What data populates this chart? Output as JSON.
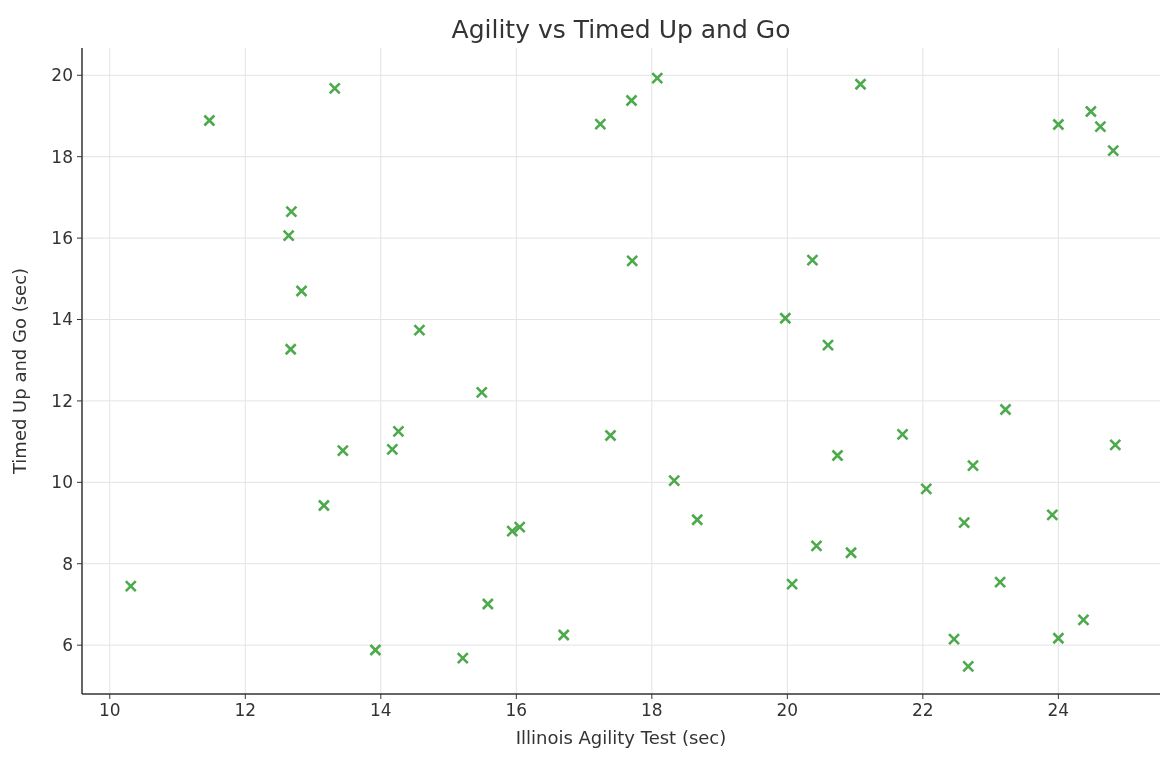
{
  "chart_data": {
    "type": "scatter",
    "title": "Agility vs Timed Up and Go",
    "xlabel": "Illinois Agility Test (sec)",
    "ylabel": "Timed Up and Go (sec)",
    "x": [
      10.31,
      11.47,
      13.32,
      12.68,
      12.64,
      12.83,
      12.67,
      14.57,
      13.16,
      13.44,
      14.17,
      14.26,
      13.92,
      15.49,
      15.58,
      15.21,
      15.94,
      16.05,
      16.7,
      17.39,
      17.24,
      17.7,
      18.08,
      17.71,
      18.33,
      18.67,
      19.97,
      20.07,
      20.37,
      20.43,
      20.6,
      20.74,
      20.94,
      21.08,
      21.7,
      22.05,
      22.46,
      22.61,
      22.67,
      22.74,
      23.14,
      23.22,
      23.91,
      24.0,
      24.0,
      24.37,
      24.48,
      24.62,
      24.81,
      24.84
    ],
    "series": [
      {
        "color": "#4caa4c",
        "values": [
          7.45,
          18.89,
          19.68,
          16.65,
          16.06,
          14.7,
          13.27,
          13.74,
          9.43,
          10.78,
          10.81,
          11.25,
          5.88,
          12.21,
          7.01,
          5.68,
          8.8,
          8.9,
          6.25,
          11.15,
          18.8,
          19.38,
          19.93,
          15.44,
          10.04,
          9.08,
          14.03,
          7.5,
          15.46,
          8.44,
          13.37,
          10.66,
          8.27,
          19.78,
          11.18,
          9.84,
          6.15,
          9.01,
          5.48,
          10.41,
          7.55,
          11.79,
          9.2,
          18.79,
          6.17,
          6.62,
          19.11,
          18.74,
          18.15,
          10.92
        ]
      }
    ],
    "xlim": [
      9.59,
      25.5
    ],
    "ylim": [
      4.8,
      20.67
    ],
    "xticks": [
      10,
      12,
      14,
      16,
      18,
      20,
      22,
      24
    ],
    "yticks": [
      6,
      8,
      10,
      12,
      14,
      16,
      18,
      20
    ],
    "grid": true,
    "marker": "cross"
  }
}
